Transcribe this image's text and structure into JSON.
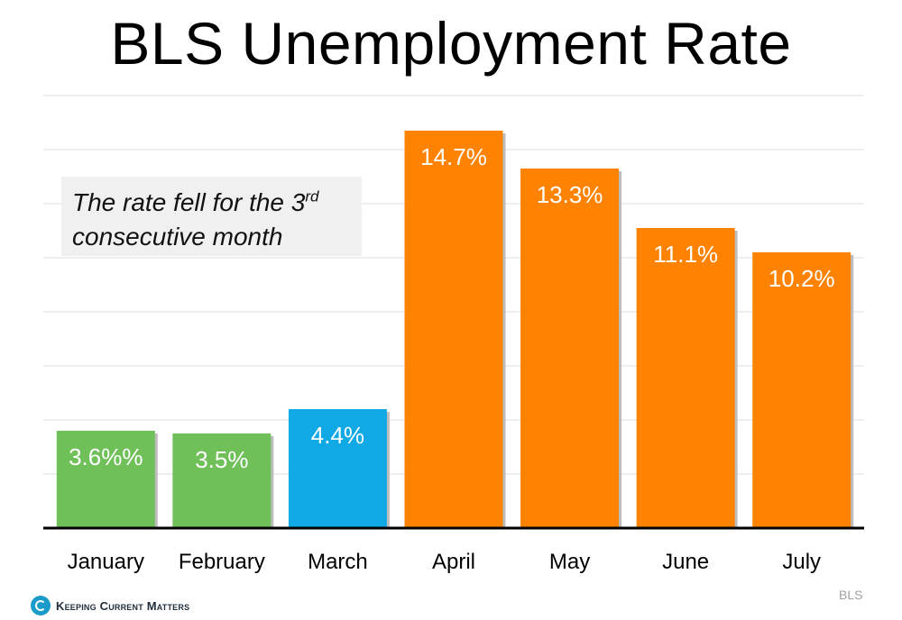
{
  "chart_data": {
    "type": "bar",
    "title": "BLS Unemployment Rate",
    "categories": [
      "January",
      "February",
      "March",
      "April",
      "May",
      "June",
      "July"
    ],
    "values": [
      3.6,
      3.5,
      4.4,
      14.7,
      13.3,
      11.1,
      10.2
    ],
    "data_labels": [
      "3.6%%",
      "3.5%",
      "4.4%",
      "14.7%",
      "13.3%",
      "11.1%",
      "10.2%"
    ],
    "bar_colors": [
      "#70c05a",
      "#70c05a",
      "#10a9e6",
      "#ff8300",
      "#ff8300",
      "#ff8300",
      "#ff8300"
    ],
    "ylim": [
      0,
      16
    ],
    "grid": true,
    "annotation": {
      "text": "The rate fell for the 3",
      "superscript": "rd",
      "text_line2": "consecutive month"
    }
  },
  "brand": {
    "name": "Keeping Current Matters",
    "icon": "kcm-logo-icon"
  },
  "source": "BLS"
}
